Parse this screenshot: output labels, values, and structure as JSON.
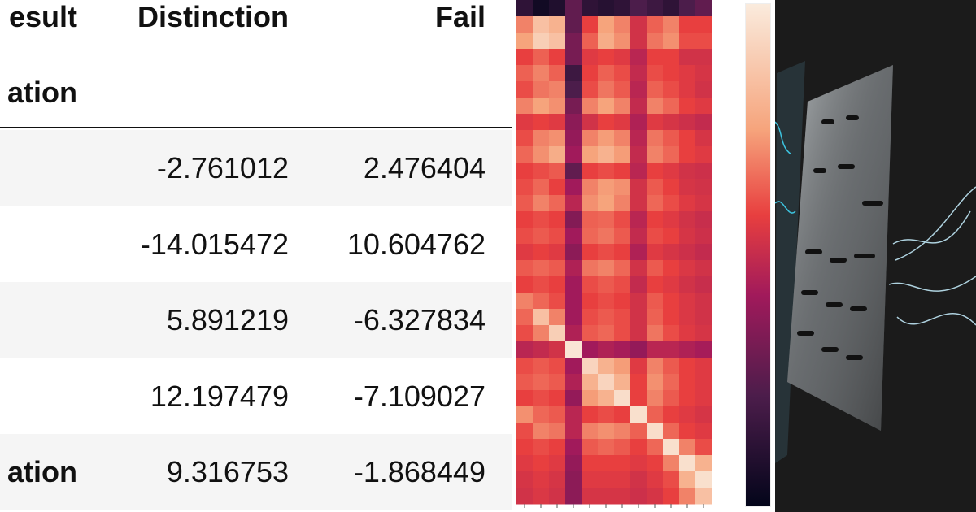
{
  "table": {
    "header": {
      "index_label": "esult",
      "columns": [
        "Distinction",
        "Fail"
      ]
    },
    "index_name": "ation",
    "rows": [
      {
        "values": [
          "-2.761012",
          "2.476404"
        ]
      },
      {
        "values": [
          "-14.015472",
          "10.604762"
        ]
      },
      {
        "values": [
          "5.891219",
          "-6.327834"
        ]
      },
      {
        "values": [
          "12.197479",
          "-7.109027"
        ]
      },
      {
        "index": "ation",
        "values": [
          "9.316753",
          "-1.868449"
        ]
      }
    ]
  },
  "heatmap": {
    "values": [
      [
        0.15,
        0.05,
        0.1,
        0.3,
        0.15,
        0.12,
        0.15,
        0.25,
        0.2,
        0.15,
        0.25,
        0.3
      ],
      [
        0.7,
        0.85,
        0.8,
        0.3,
        0.6,
        0.75,
        0.7,
        0.55,
        0.65,
        0.7,
        0.6,
        0.6
      ],
      [
        0.75,
        0.9,
        0.85,
        0.35,
        0.65,
        0.78,
        0.72,
        0.55,
        0.68,
        0.72,
        0.62,
        0.62
      ],
      [
        0.6,
        0.65,
        0.6,
        0.35,
        0.58,
        0.6,
        0.58,
        0.5,
        0.6,
        0.6,
        0.55,
        0.55
      ],
      [
        0.65,
        0.7,
        0.65,
        0.2,
        0.6,
        0.65,
        0.62,
        0.52,
        0.62,
        0.6,
        0.58,
        0.56
      ],
      [
        0.62,
        0.68,
        0.7,
        0.25,
        0.62,
        0.68,
        0.64,
        0.5,
        0.65,
        0.62,
        0.58,
        0.55
      ],
      [
        0.7,
        0.75,
        0.72,
        0.35,
        0.7,
        0.75,
        0.7,
        0.52,
        0.7,
        0.66,
        0.6,
        0.58
      ],
      [
        0.58,
        0.6,
        0.58,
        0.4,
        0.55,
        0.6,
        0.58,
        0.48,
        0.58,
        0.56,
        0.54,
        0.52
      ],
      [
        0.62,
        0.7,
        0.72,
        0.42,
        0.7,
        0.74,
        0.7,
        0.5,
        0.68,
        0.64,
        0.6,
        0.56
      ],
      [
        0.66,
        0.72,
        0.78,
        0.45,
        0.75,
        0.8,
        0.74,
        0.52,
        0.7,
        0.66,
        0.6,
        0.58
      ],
      [
        0.6,
        0.62,
        0.64,
        0.3,
        0.6,
        0.62,
        0.6,
        0.5,
        0.6,
        0.58,
        0.55,
        0.54
      ],
      [
        0.62,
        0.66,
        0.6,
        0.45,
        0.7,
        0.74,
        0.72,
        0.55,
        0.64,
        0.6,
        0.56,
        0.55
      ],
      [
        0.64,
        0.7,
        0.66,
        0.5,
        0.72,
        0.75,
        0.7,
        0.55,
        0.66,
        0.62,
        0.58,
        0.56
      ],
      [
        0.6,
        0.62,
        0.6,
        0.38,
        0.65,
        0.66,
        0.62,
        0.5,
        0.6,
        0.58,
        0.55,
        0.53
      ],
      [
        0.62,
        0.64,
        0.62,
        0.45,
        0.66,
        0.68,
        0.64,
        0.52,
        0.62,
        0.6,
        0.56,
        0.54
      ],
      [
        0.58,
        0.6,
        0.58,
        0.4,
        0.6,
        0.62,
        0.6,
        0.48,
        0.58,
        0.56,
        0.54,
        0.52
      ],
      [
        0.64,
        0.66,
        0.64,
        0.48,
        0.68,
        0.7,
        0.66,
        0.55,
        0.64,
        0.6,
        0.57,
        0.55
      ],
      [
        0.6,
        0.62,
        0.6,
        0.45,
        0.62,
        0.64,
        0.62,
        0.52,
        0.6,
        0.58,
        0.55,
        0.53
      ],
      [
        0.7,
        0.66,
        0.62,
        0.45,
        0.6,
        0.62,
        0.6,
        0.55,
        0.64,
        0.6,
        0.57,
        0.55
      ],
      [
        0.66,
        0.85,
        0.7,
        0.45,
        0.62,
        0.64,
        0.62,
        0.55,
        0.65,
        0.6,
        0.57,
        0.55
      ],
      [
        0.62,
        0.7,
        0.9,
        0.48,
        0.64,
        0.66,
        0.62,
        0.55,
        0.68,
        0.62,
        0.58,
        0.56
      ],
      [
        0.5,
        0.52,
        0.55,
        0.98,
        0.45,
        0.48,
        0.46,
        0.42,
        0.5,
        0.5,
        0.48,
        0.46
      ],
      [
        0.62,
        0.64,
        0.62,
        0.45,
        0.92,
        0.8,
        0.74,
        0.58,
        0.7,
        0.64,
        0.6,
        0.58
      ],
      [
        0.64,
        0.66,
        0.64,
        0.48,
        0.8,
        0.92,
        0.8,
        0.6,
        0.72,
        0.66,
        0.6,
        0.58
      ],
      [
        0.6,
        0.62,
        0.6,
        0.42,
        0.74,
        0.8,
        0.95,
        0.6,
        0.7,
        0.64,
        0.6,
        0.58
      ],
      [
        0.72,
        0.66,
        0.64,
        0.5,
        0.6,
        0.62,
        0.6,
        0.96,
        0.65,
        0.6,
        0.58,
        0.56
      ],
      [
        0.62,
        0.7,
        0.68,
        0.5,
        0.7,
        0.72,
        0.7,
        0.65,
        0.95,
        0.66,
        0.6,
        0.58
      ],
      [
        0.6,
        0.62,
        0.6,
        0.45,
        0.64,
        0.66,
        0.64,
        0.6,
        0.66,
        0.96,
        0.7,
        0.62
      ],
      [
        0.58,
        0.6,
        0.58,
        0.42,
        0.6,
        0.6,
        0.6,
        0.58,
        0.6,
        0.7,
        0.96,
        0.8
      ],
      [
        0.56,
        0.58,
        0.56,
        0.4,
        0.58,
        0.58,
        0.58,
        0.55,
        0.58,
        0.62,
        0.8,
        0.96
      ],
      [
        0.55,
        0.57,
        0.55,
        0.4,
        0.56,
        0.56,
        0.56,
        0.54,
        0.56,
        0.6,
        0.7,
        0.85
      ]
    ]
  }
}
